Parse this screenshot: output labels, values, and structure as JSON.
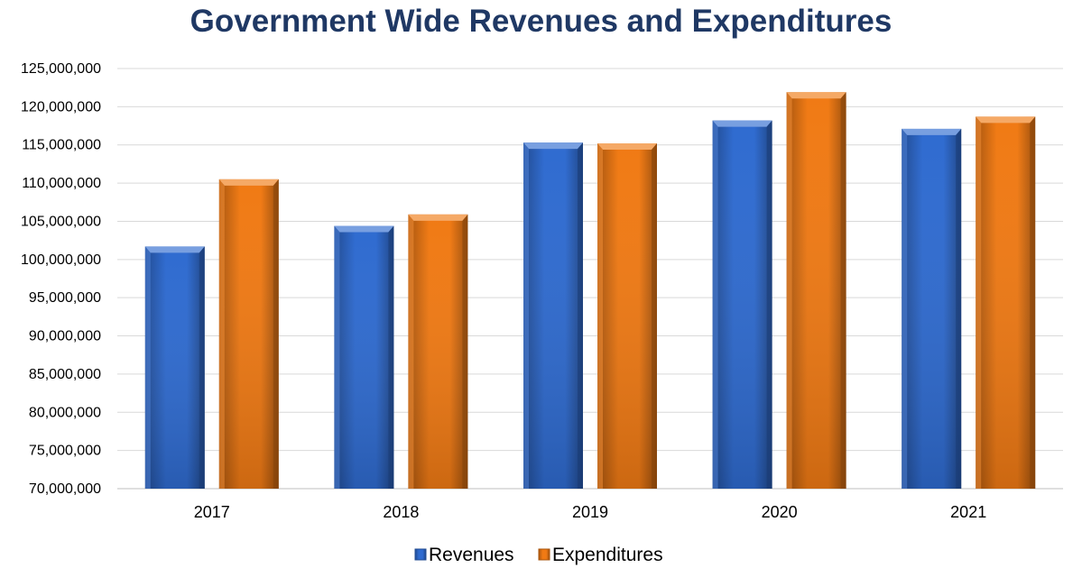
{
  "chart_data": {
    "type": "bar",
    "title": "Government Wide Revenues and Expenditures",
    "title_color": "#1f3864",
    "categories": [
      "2017",
      "2018",
      "2019",
      "2020",
      "2021"
    ],
    "series": [
      {
        "name": "Revenues",
        "color": "#2f6bd0",
        "values": [
          101700000,
          104400000,
          115300000,
          118200000,
          117100000
        ]
      },
      {
        "name": "Expenditures",
        "color": "#f07a14",
        "values": [
          110500000,
          105900000,
          115200000,
          121900000,
          118700000
        ]
      }
    ],
    "ylim": [
      70000000,
      125000000
    ],
    "yticks": [
      "70,000,000",
      "75,000,000",
      "80,000,000",
      "85,000,000",
      "90,000,000",
      "95,000,000",
      "100,000,000",
      "105,000,000",
      "110,000,000",
      "115,000,000",
      "120,000,000",
      "125,000,000"
    ],
    "xlabel": "",
    "ylabel": "",
    "grid": true,
    "legend_position": "bottom"
  }
}
